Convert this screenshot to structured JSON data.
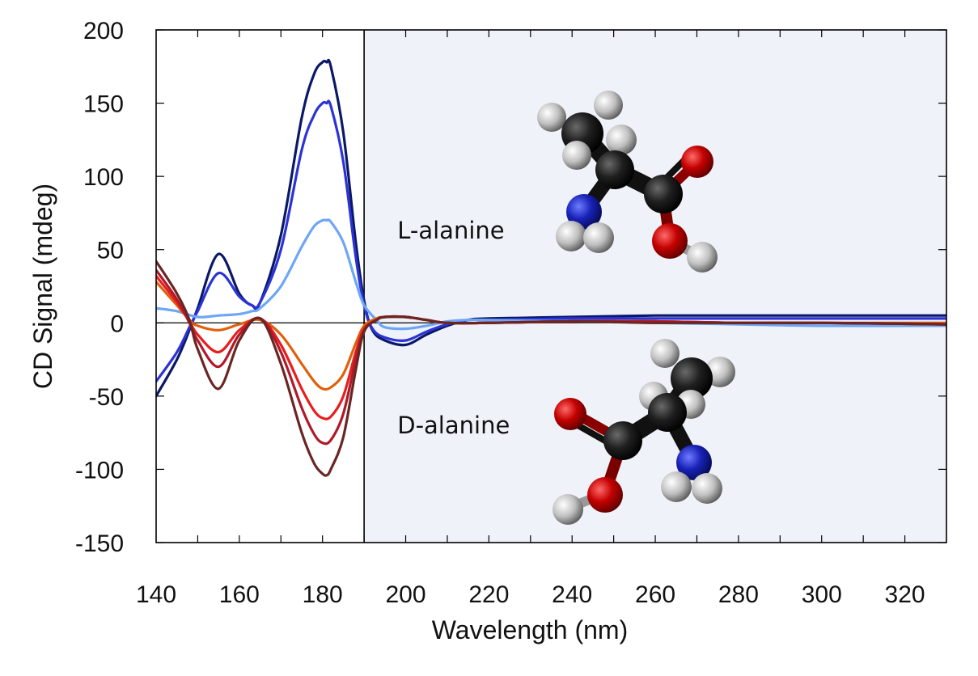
{
  "chart_data": {
    "type": "line",
    "title": "",
    "xlabel": "Wavelength (nm)",
    "ylabel": "CD Signal (mdeg)",
    "xlim": [
      140,
      330
    ],
    "ylim": [
      -150,
      200
    ],
    "x_ticks": [
      140,
      160,
      180,
      200,
      220,
      240,
      260,
      280,
      300,
      320
    ],
    "y_ticks": [
      200,
      150,
      100,
      50,
      0,
      -50,
      -100,
      -150
    ],
    "grid": false,
    "legend": "none",
    "shaded_region": {
      "x_from": 190,
      "x_to": 330,
      "color": "#eff3f9"
    },
    "vertical_marker_x": 190,
    "zero_line": true,
    "annotations": [
      {
        "text": "L-alanine",
        "x": 198,
        "y": 63
      },
      {
        "text": "D-alanine",
        "x": 198,
        "y": -70
      }
    ],
    "series": [
      {
        "color": "#0b1866",
        "x": [
          140,
          145,
          148,
          150,
          155,
          160,
          163,
          165,
          170,
          175,
          178,
          180,
          181,
          182,
          185,
          188,
          190,
          192,
          195,
          200,
          205,
          210,
          215,
          220,
          240,
          260,
          280,
          300,
          330
        ],
        "values": [
          -50,
          -25,
          -5,
          10,
          47,
          20,
          12,
          14,
          60,
          140,
          170,
          178,
          178,
          175,
          130,
          55,
          15,
          -5,
          -12,
          -15,
          -8,
          -2,
          2,
          3,
          4,
          5,
          5,
          5,
          5
        ]
      },
      {
        "color": "#2b33d6",
        "x": [
          140,
          145,
          148,
          150,
          155,
          160,
          163,
          165,
          170,
          175,
          178,
          180,
          181,
          182,
          185,
          188,
          190,
          192,
          195,
          200,
          205,
          210,
          215,
          220,
          240,
          260,
          280,
          300,
          330
        ],
        "values": [
          -40,
          -20,
          -3,
          8,
          34,
          18,
          12,
          14,
          50,
          118,
          142,
          150,
          150,
          148,
          110,
          45,
          12,
          -4,
          -10,
          -12,
          -6,
          -1,
          2,
          2,
          3,
          3,
          3,
          3,
          3
        ]
      },
      {
        "color": "#6da6f5",
        "x": [
          140,
          145,
          150,
          155,
          160,
          163,
          165,
          170,
          175,
          178,
          180,
          181,
          182,
          185,
          188,
          190,
          193,
          195,
          200,
          205,
          210,
          215,
          220,
          240,
          260,
          280,
          300,
          330
        ],
        "values": [
          10,
          8,
          4,
          5,
          6,
          8,
          10,
          25,
          52,
          66,
          70,
          70,
          69,
          55,
          28,
          12,
          2,
          -3,
          -4,
          -2,
          1,
          2,
          2,
          1,
          0,
          -1,
          -2,
          -2
        ]
      },
      {
        "color": "#e0600a",
        "x": [
          140,
          145,
          148,
          150,
          155,
          160,
          165,
          170,
          175,
          178,
          180,
          182,
          185,
          188,
          190,
          193,
          195,
          200,
          205,
          210,
          220,
          240,
          260,
          280,
          300,
          330
        ],
        "values": [
          28,
          12,
          2,
          -2,
          -5,
          -1,
          2,
          -8,
          -28,
          -40,
          -45,
          -44,
          -35,
          -14,
          -2,
          3,
          4,
          4,
          2,
          0,
          0,
          1,
          1,
          0,
          0,
          0
        ]
      },
      {
        "color": "#e81d1d",
        "x": [
          140,
          145,
          148,
          150,
          155,
          160,
          165,
          170,
          175,
          178,
          180,
          182,
          185,
          188,
          190,
          193,
          195,
          200,
          205,
          210,
          220,
          240,
          260,
          280,
          300,
          330
        ],
        "values": [
          32,
          14,
          1,
          -8,
          -20,
          -5,
          3,
          -15,
          -45,
          -60,
          -65,
          -64,
          -50,
          -20,
          -4,
          2,
          4,
          4,
          2,
          0,
          0,
          1,
          1,
          0,
          0,
          -1
        ]
      },
      {
        "color": "#b0192a",
        "x": [
          140,
          145,
          148,
          150,
          155,
          160,
          165,
          170,
          175,
          178,
          180,
          182,
          185,
          188,
          190,
          193,
          195,
          200,
          205,
          210,
          220,
          240,
          260,
          280,
          300,
          330
        ],
        "values": [
          36,
          16,
          0,
          -12,
          -30,
          -8,
          3,
          -20,
          -58,
          -76,
          -82,
          -80,
          -62,
          -25,
          -5,
          2,
          4,
          4,
          2,
          0,
          0,
          1,
          1,
          0,
          0,
          -1
        ]
      },
      {
        "color": "#6a2623",
        "x": [
          140,
          145,
          148,
          150,
          155,
          160,
          165,
          170,
          175,
          178,
          180,
          181,
          182,
          185,
          188,
          190,
          193,
          195,
          200,
          205,
          210,
          220,
          240,
          260,
          280,
          300,
          330
        ],
        "values": [
          42,
          20,
          2,
          -18,
          -45,
          -12,
          3,
          -28,
          -75,
          -96,
          -103,
          -104,
          -100,
          -78,
          -32,
          -6,
          2,
          4,
          4,
          2,
          0,
          0,
          1,
          0,
          0,
          0,
          -1
        ]
      }
    ]
  }
}
